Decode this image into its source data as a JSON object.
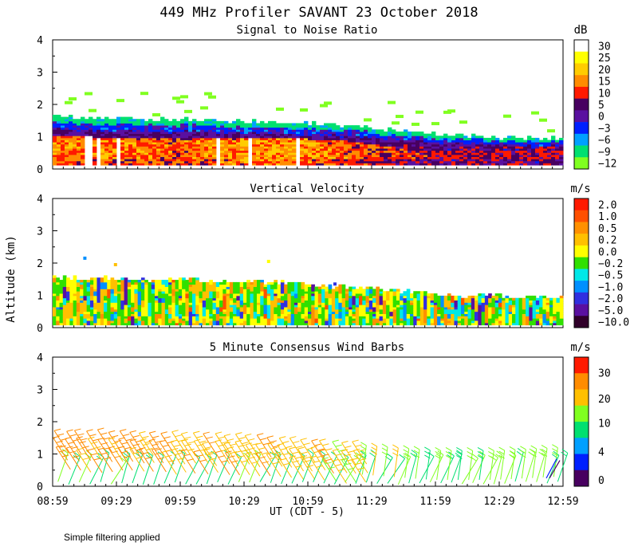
{
  "title": "449 MHz Profiler SAVANT 23 October 2018",
  "ylabel": "Altitude (km)",
  "xlabel": "UT  (CDT - 5)",
  "footnote": "Simple filtering applied",
  "x_tick_labels": [
    "08:59",
    "09:29",
    "09:59",
    "10:29",
    "10:59",
    "11:29",
    "11:59",
    "12:29",
    "12:59"
  ],
  "y_tick_labels": [
    "0",
    "1",
    "2",
    "3",
    "4"
  ],
  "chart_data": [
    {
      "type": "heatmap",
      "name": "snr",
      "title": "Signal to Noise Ratio",
      "unit": "dB",
      "xlabel": "UT  (CDT - 5)",
      "ylabel": "Altitude (km)",
      "xlim": [
        "08:59",
        "12:59"
      ],
      "ylim": [
        0,
        4
      ],
      "colorbar_labels": [
        "30",
        "25",
        "20",
        "15",
        "10",
        "5",
        "0",
        "−3",
        "−6",
        "−9",
        "−12"
      ],
      "colorbar_colors": [
        "#ffffff",
        "#ffff00",
        "#ffcc00",
        "#ff8c00",
        "#ff1a00",
        "#480060",
        "#5a10a0",
        "#0020ff",
        "#00a0ff",
        "#00e070",
        "#80ff20"
      ],
      "time_hours": [
        0,
        0.5,
        1,
        1.5,
        2,
        2.5,
        3,
        3.5,
        4
      ],
      "echo_top_km": [
        1.6,
        1.55,
        1.5,
        1.45,
        1.4,
        1.25,
        1.05,
        0.95,
        0.95
      ],
      "strong_layer_top_km": [
        1.0,
        0.95,
        0.95,
        0.95,
        0.9,
        0.8,
        0.65,
        0.65,
        0.65
      ],
      "snr_center_db": [
        12,
        12,
        10,
        14,
        14,
        8,
        4,
        4,
        4
      ]
    },
    {
      "type": "heatmap",
      "name": "vertical_velocity",
      "title": "Vertical Velocity",
      "unit": "m/s",
      "xlim": [
        "08:59",
        "12:59"
      ],
      "ylim": [
        0,
        4
      ],
      "colorbar_labels": [
        "2.0",
        "1.0",
        "0.5",
        "0.2",
        "0.0",
        "−0.2",
        "−0.5",
        "−1.0",
        "−2.0",
        "−5.0",
        "−10.0"
      ],
      "colorbar_colors": [
        "#ff1a00",
        "#ff5000",
        "#ff9000",
        "#ffc000",
        "#ffff00",
        "#30e000",
        "#00e8e8",
        "#0090ff",
        "#3030e0",
        "#5a10a0",
        "#30002a"
      ],
      "time_hours": [
        0,
        0.5,
        1,
        1.5,
        2,
        2.5,
        3,
        3.5,
        4
      ],
      "echo_top_km": [
        1.5,
        1.5,
        1.45,
        1.4,
        1.3,
        1.2,
        1.0,
        0.95,
        0.9
      ]
    },
    {
      "type": "scatter",
      "name": "wind_barbs",
      "title": "5 Minute Consensus Wind Barbs",
      "unit": "m/s",
      "xlim": [
        "08:59",
        "12:59"
      ],
      "ylim": [
        0,
        4
      ],
      "colorbar_labels": [
        "30",
        "20",
        "10",
        "4",
        "0"
      ],
      "colorbar_colors": [
        "#ff1a00",
        "#ff8c00",
        "#ffc000",
        "#80ff20",
        "#00e070",
        "#00a0ff",
        "#0020ff",
        "#480060"
      ],
      "time_hours": [
        0,
        0.5,
        1,
        1.5,
        2,
        2.5,
        3,
        3.5,
        4
      ],
      "upper_level_speed_ms": [
        20,
        19,
        18,
        18,
        17,
        14,
        10,
        10,
        11
      ],
      "lower_level_speed_ms": [
        10,
        8,
        7,
        8,
        7,
        9,
        9,
        9,
        8
      ],
      "echo_top_km": [
        1.9,
        1.85,
        1.8,
        1.75,
        1.6,
        1.45,
        1.3,
        1.3,
        1.4
      ]
    }
  ]
}
